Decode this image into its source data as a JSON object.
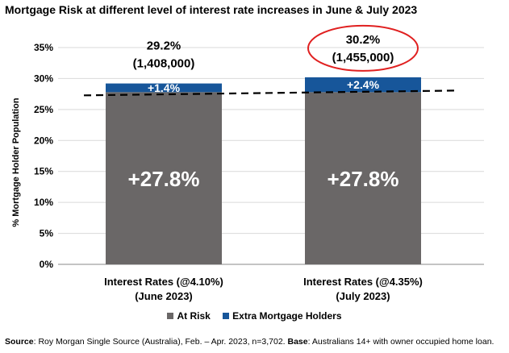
{
  "chart_data": {
    "type": "bar",
    "title": "Mortgage Risk at different level of interest rate increases in June & July 2023",
    "ylabel": "% Mortgage Holder Population",
    "ylim": [
      0,
      35
    ],
    "yticks": [
      "0%",
      "5%",
      "10%",
      "15%",
      "20%",
      "25%",
      "30%",
      "35%"
    ],
    "grid": true,
    "legend_position": "bottom",
    "categories": [
      {
        "line1": "Interest Rates (@4.10%)",
        "line2": "(June 2023)"
      },
      {
        "line1": "Interest Rates (@4.35%)",
        "line2": "(July 2023)"
      }
    ],
    "series": [
      {
        "name": "At Risk",
        "color": "#6a6767",
        "values": [
          27.8,
          27.8
        ],
        "labels": [
          "+27.8%",
          "+27.8%"
        ]
      },
      {
        "name": "Extra Mortgage Holders",
        "color": "#17569a",
        "values": [
          1.4,
          2.4
        ],
        "labels": [
          "+1.4%",
          "+2.4%"
        ]
      }
    ],
    "totals": [
      {
        "percent": "29.2%",
        "count": "(1,408,000)",
        "highlighted": false
      },
      {
        "percent": "30.2%",
        "count": "(1,455,000)",
        "highlighted": true
      }
    ],
    "reference_line": 27.8,
    "highlight_color": "#e02020"
  },
  "source": {
    "label": "Source",
    "text": ": Roy Morgan Single Source (Australia), Feb. – Apr. 2023, n=3,702. ",
    "base_label": "Base",
    "base_text": ": Australians 14+ with owner occupied home loan."
  }
}
